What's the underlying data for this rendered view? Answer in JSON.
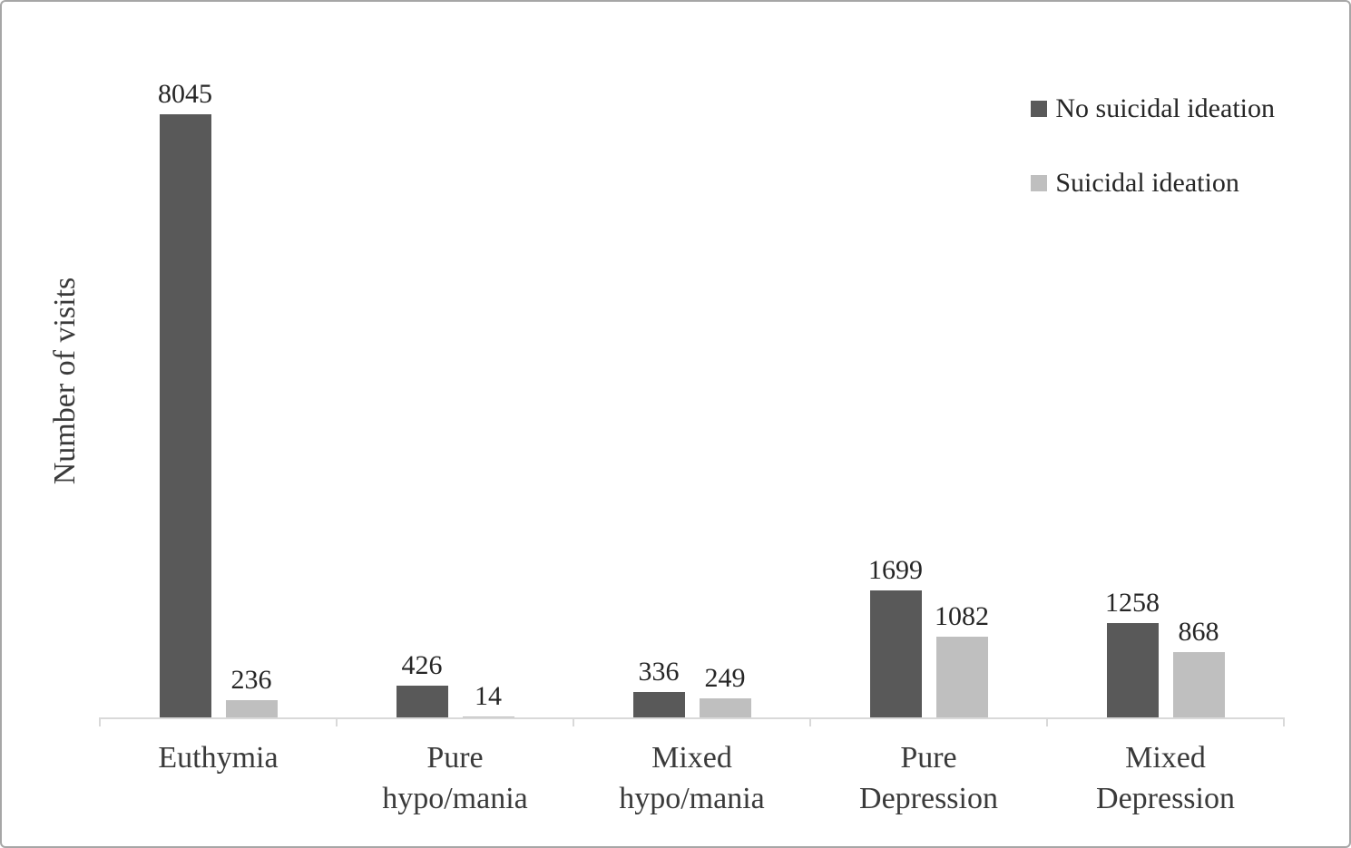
{
  "chart_data": {
    "type": "bar",
    "title": "",
    "categories": [
      "Euthymia",
      "Pure hypo/mania",
      "Mixed hypo/mania",
      "Pure Depression",
      "Mixed Depression"
    ],
    "category_lines": [
      [
        "Euthymia"
      ],
      [
        "Pure",
        "hypo/mania"
      ],
      [
        "Mixed",
        "hypo/mania"
      ],
      [
        "Pure",
        "Depression"
      ],
      [
        "Mixed",
        "Depression"
      ]
    ],
    "series": [
      {
        "name": "No suicidal ideation",
        "color": "#595959",
        "values": [
          8045,
          426,
          336,
          1699,
          1258
        ]
      },
      {
        "name": "Suicidal ideation",
        "color": "#bfbfbf",
        "values": [
          236,
          14,
          249,
          1082,
          868
        ]
      }
    ],
    "xlabel": "",
    "ylabel": "Number of visits",
    "ylim": [
      0,
      9000
    ],
    "grid": false,
    "y_axis_ticks_visible": false,
    "data_labels": true,
    "legend_position": "top-right"
  },
  "frame": {
    "border_color": "#a6a6a6",
    "axis_color": "#d9d9d9",
    "background": "#ffffff"
  }
}
